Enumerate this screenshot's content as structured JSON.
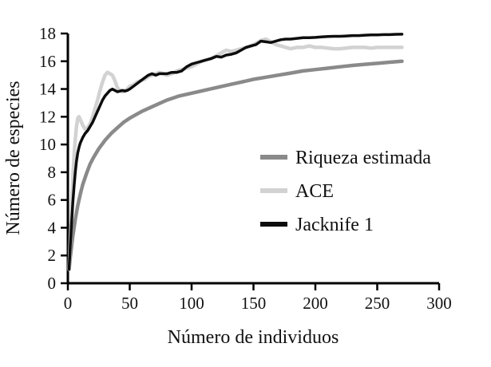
{
  "chart_data": {
    "type": "line",
    "title": "",
    "xlabel": "Número de individuos",
    "ylabel": "Número de especies",
    "xlim": [
      0,
      300
    ],
    "ylim": [
      0,
      18
    ],
    "xticks": [
      0,
      50,
      100,
      150,
      200,
      250,
      300
    ],
    "yticks": [
      0,
      2,
      4,
      6,
      8,
      10,
      12,
      14,
      16,
      18
    ],
    "grid": false,
    "legend_position": "inside-right",
    "axis_color": "#000000",
    "series": [
      {
        "name": "Riqueza estimada",
        "color": "#8a8a8a",
        "width": 4.5,
        "x": [
          1,
          2,
          3,
          4,
          5,
          6,
          8,
          10,
          12,
          15,
          18,
          21,
          25,
          30,
          35,
          40,
          45,
          50,
          60,
          70,
          80,
          90,
          100,
          110,
          120,
          130,
          140,
          150,
          160,
          170,
          180,
          190,
          200,
          210,
          220,
          230,
          240,
          250,
          260,
          270
        ],
        "y": [
          1.0,
          1.9,
          2.7,
          3.4,
          4.0,
          4.6,
          5.6,
          6.4,
          7.1,
          7.9,
          8.6,
          9.1,
          9.7,
          10.3,
          10.8,
          11.2,
          11.6,
          11.9,
          12.4,
          12.8,
          13.2,
          13.5,
          13.7,
          13.9,
          14.1,
          14.3,
          14.5,
          14.7,
          14.85,
          15.0,
          15.15,
          15.3,
          15.4,
          15.5,
          15.6,
          15.7,
          15.78,
          15.85,
          15.93,
          16.0
        ]
      },
      {
        "name": "ACE",
        "color": "#d2d2d2",
        "width": 4.5,
        "x": [
          1,
          2,
          3,
          4,
          5,
          6,
          7,
          8,
          9,
          10,
          12,
          14,
          16,
          18,
          20,
          22,
          24,
          26,
          28,
          30,
          32,
          34,
          36,
          38,
          40,
          42,
          44,
          46,
          48,
          50,
          53,
          56,
          59,
          62,
          65,
          68,
          71,
          74,
          77,
          80,
          84,
          88,
          92,
          96,
          100,
          104,
          108,
          112,
          116,
          120,
          124,
          128,
          132,
          136,
          140,
          144,
          148,
          152,
          156,
          160,
          164,
          168,
          172,
          176,
          180,
          185,
          190,
          195,
          200,
          205,
          210,
          215,
          220,
          225,
          230,
          235,
          240,
          245,
          250,
          255,
          260,
          265,
          270
        ],
        "y": [
          1.0,
          3.2,
          5.5,
          7.6,
          9.2,
          10.4,
          11.3,
          11.9,
          12.0,
          11.8,
          11.4,
          11.1,
          11.2,
          11.5,
          12.0,
          12.6,
          13.2,
          13.9,
          14.5,
          15.0,
          15.2,
          15.1,
          15.0,
          14.6,
          14.1,
          13.9,
          13.8,
          13.9,
          14.0,
          14.2,
          14.3,
          14.5,
          14.6,
          14.7,
          14.9,
          15.0,
          15.1,
          15.2,
          15.1,
          15.0,
          15.1,
          15.3,
          15.4,
          15.5,
          15.6,
          15.8,
          16.0,
          16.1,
          16.2,
          16.4,
          16.6,
          16.8,
          16.7,
          16.8,
          16.9,
          17.0,
          17.1,
          17.3,
          17.5,
          17.6,
          17.4,
          17.2,
          17.1,
          17.0,
          16.9,
          17.0,
          17.0,
          17.1,
          17.0,
          17.0,
          16.95,
          16.9,
          16.9,
          16.95,
          17.0,
          17.0,
          17.0,
          16.95,
          17.0,
          17.0,
          17.0,
          17.0,
          17.0
        ]
      },
      {
        "name": "Jacknife 1",
        "color": "#0d0d0d",
        "width": 3.5,
        "x": [
          1,
          2,
          3,
          4,
          5,
          6,
          7,
          8,
          9,
          10,
          12,
          14,
          16,
          18,
          20,
          22,
          24,
          26,
          28,
          30,
          32,
          34,
          36,
          38,
          40,
          42,
          44,
          46,
          48,
          50,
          53,
          56,
          59,
          62,
          65,
          68,
          71,
          74,
          77,
          80,
          84,
          88,
          92,
          96,
          100,
          104,
          108,
          112,
          116,
          120,
          124,
          128,
          132,
          136,
          140,
          144,
          148,
          152,
          156,
          160,
          164,
          168,
          172,
          176,
          180,
          185,
          190,
          195,
          200,
          205,
          210,
          215,
          220,
          225,
          230,
          235,
          240,
          245,
          250,
          255,
          260,
          265,
          270
        ],
        "y": [
          1.0,
          2.8,
          4.4,
          5.8,
          7.0,
          8.0,
          8.8,
          9.4,
          9.8,
          10.1,
          10.5,
          10.8,
          11.0,
          11.3,
          11.6,
          12.0,
          12.4,
          12.8,
          13.2,
          13.5,
          13.7,
          13.9,
          14.0,
          13.9,
          13.8,
          13.85,
          13.9,
          13.85,
          13.9,
          14.0,
          14.2,
          14.4,
          14.6,
          14.8,
          15.0,
          15.1,
          15.0,
          15.1,
          15.1,
          15.1,
          15.2,
          15.2,
          15.3,
          15.6,
          15.8,
          15.9,
          16.0,
          16.1,
          16.2,
          16.35,
          16.3,
          16.45,
          16.5,
          16.6,
          16.8,
          17.0,
          17.1,
          17.2,
          17.45,
          17.4,
          17.35,
          17.45,
          17.55,
          17.6,
          17.6,
          17.65,
          17.7,
          17.7,
          17.72,
          17.75,
          17.78,
          17.8,
          17.8,
          17.82,
          17.85,
          17.85,
          17.88,
          17.9,
          17.9,
          17.92,
          17.92,
          17.94,
          17.95
        ]
      }
    ]
  }
}
